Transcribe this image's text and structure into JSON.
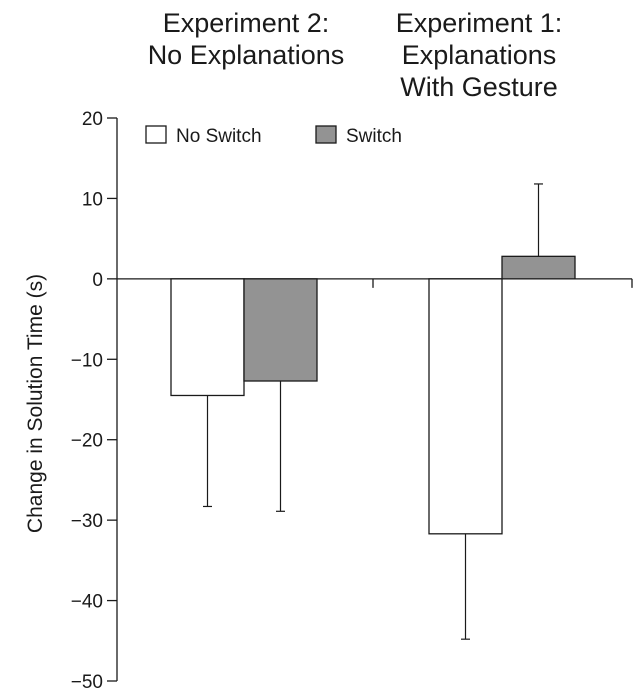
{
  "chart_data": {
    "type": "bar",
    "categories": [
      [
        "Experiment 2:",
        "No Explanations"
      ],
      [
        "Experiment 1:",
        "Explanations",
        "With Gesture"
      ]
    ],
    "series": [
      {
        "name": "No Switch",
        "color": "#ffffff",
        "values": [
          -14.5,
          -31.7
        ],
        "error_upper": [
          null,
          null
        ],
        "error_lower": [
          -28.3,
          -44.8
        ]
      },
      {
        "name": "Switch",
        "color": "#939393",
        "values": [
          -12.7,
          2.8
        ],
        "error_upper": [
          null,
          11.8
        ],
        "error_lower": [
          -28.9,
          null
        ]
      }
    ],
    "xlabel": "",
    "ylabel": "Change in Solution Time (s)",
    "ylim": [
      -50,
      20
    ],
    "yticks": [
      20,
      10,
      0,
      -10,
      -20,
      -30,
      -40,
      -50
    ],
    "ytick_labels": [
      "20",
      "10",
      "0",
      "−10",
      "−20",
      "−30",
      "−40",
      "−50"
    ],
    "grid": false,
    "legend": "top-left"
  }
}
